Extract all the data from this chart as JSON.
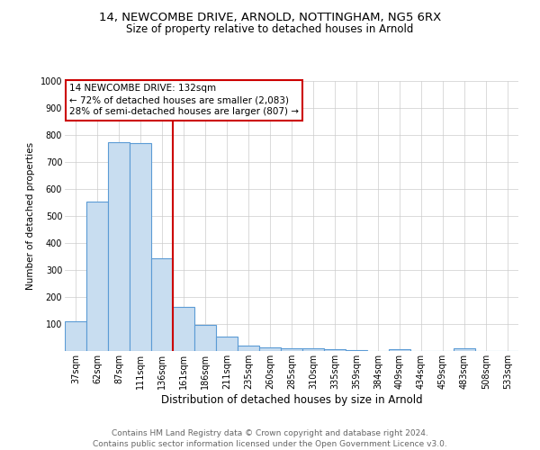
{
  "title1": "14, NEWCOMBE DRIVE, ARNOLD, NOTTINGHAM, NG5 6RX",
  "title2": "Size of property relative to detached houses in Arnold",
  "xlabel": "Distribution of detached houses by size in Arnold",
  "ylabel": "Number of detached properties",
  "bin_labels": [
    "37sqm",
    "62sqm",
    "87sqm",
    "111sqm",
    "136sqm",
    "161sqm",
    "186sqm",
    "211sqm",
    "235sqm",
    "260sqm",
    "285sqm",
    "310sqm",
    "335sqm",
    "359sqm",
    "384sqm",
    "409sqm",
    "434sqm",
    "459sqm",
    "483sqm",
    "508sqm",
    "533sqm"
  ],
  "bar_heights": [
    110,
    555,
    775,
    770,
    345,
    163,
    97,
    53,
    20,
    13,
    10,
    9,
    8,
    5,
    0,
    8,
    0,
    0,
    10,
    0,
    0
  ],
  "bar_color": "#c8ddf0",
  "bar_edge_color": "#5b9bd5",
  "vline_bin": 4,
  "vline_color": "#cc0000",
  "annotation_line1": "14 NEWCOMBE DRIVE: 132sqm",
  "annotation_line2": "← 72% of detached houses are smaller (2,083)",
  "annotation_line3": "28% of semi-detached houses are larger (807) →",
  "annotation_box_color": "#ffffff",
  "annotation_box_edge_color": "#cc0000",
  "footer_line1": "Contains HM Land Registry data © Crown copyright and database right 2024.",
  "footer_line2": "Contains public sector information licensed under the Open Government Licence v3.0.",
  "ylim": [
    0,
    1000
  ],
  "yticks": [
    0,
    100,
    200,
    300,
    400,
    500,
    600,
    700,
    800,
    900,
    1000
  ],
  "background_color": "#ffffff",
  "grid_color": "#cccccc",
  "title1_fontsize": 9.5,
  "title2_fontsize": 8.5,
  "xlabel_fontsize": 8.5,
  "ylabel_fontsize": 7.5,
  "tick_fontsize": 7,
  "annotation_fontsize": 7.5,
  "footer_fontsize": 6.5
}
